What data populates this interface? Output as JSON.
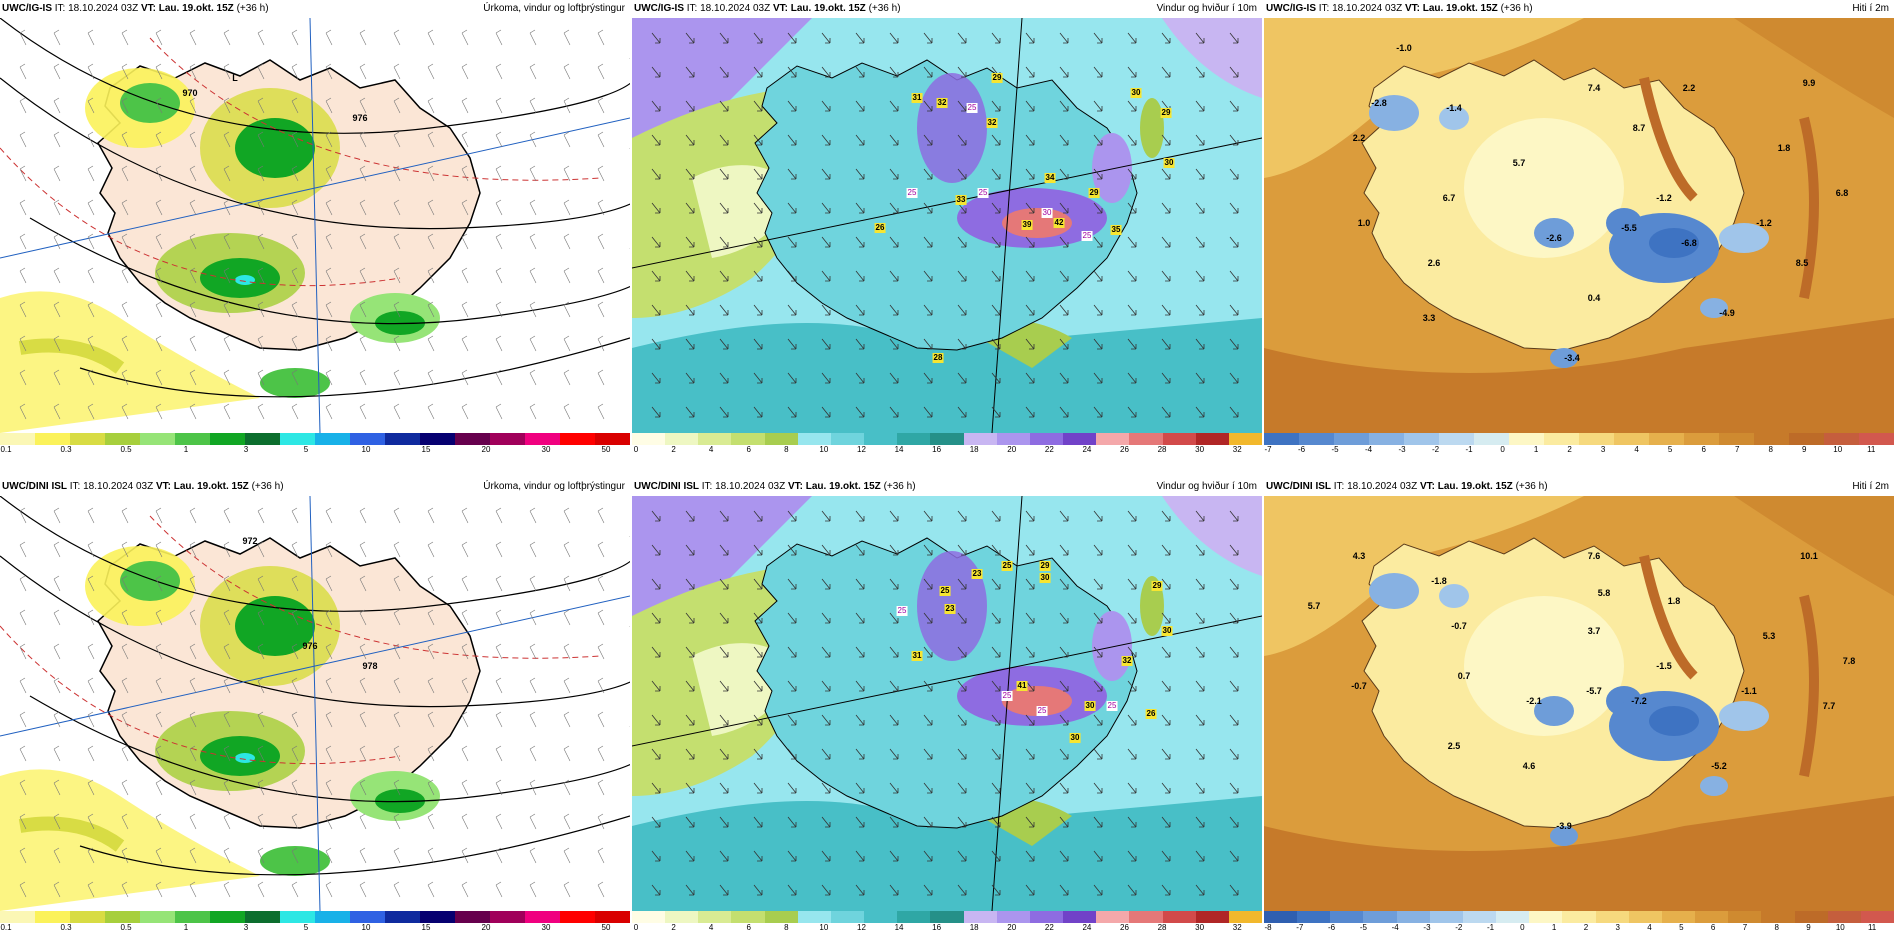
{
  "panels": [
    {
      "model": "UWC/IG-IS",
      "it": "IT: 18.10.2024 03Z",
      "vt_label": "VT: Lau. 19.okt. 15Z",
      "lead": "(+36 h)",
      "param": "Úrkoma, vindur og loftþrýstingur",
      "colors": [
        "#fbf7b5",
        "#fbf25a",
        "#d8dc44",
        "#a7cf3c",
        "#96e477",
        "#4dc448",
        "#11a624",
        "#0c6e2e",
        "#2de7e4",
        "#18b1e8",
        "#2f61e3",
        "#0f2a9e",
        "#060070",
        "#66004d",
        "#a0005a",
        "#f0007f",
        "#ff0000",
        "#d90000"
      ],
      "ticks": [
        "0.1",
        "0.3",
        "0.5",
        "1",
        "3",
        "5",
        "10",
        "15",
        "20",
        "30",
        "50"
      ],
      "labels": [
        {
          "t": "970"
        },
        {
          "t": "976"
        },
        {
          "t": "L"
        }
      ],
      "badges": []
    },
    {
      "model": "UWC/IG-IS",
      "it": "IT: 18.10.2024 03Z",
      "vt_label": "VT: Lau. 19.okt. 15Z",
      "lead": "(+36 h)",
      "param": "Vindur og hviður í 10m",
      "colors": [
        "#fffde5",
        "#eef7c2",
        "#d9eb93",
        "#c4df6f",
        "#a8cd4f",
        "#97e6ee",
        "#6fd4dd",
        "#48bfc7",
        "#2fa7a5",
        "#259088",
        "#c8b6f2",
        "#ab95ee",
        "#8e6ce1",
        "#7142c8",
        "#f4a8aa",
        "#e57878",
        "#d24a4a",
        "#b02626",
        "#f2b82c"
      ],
      "ticks": [
        "0",
        "2",
        "4",
        "6",
        "8",
        "10",
        "12",
        "14",
        "16",
        "18",
        "20",
        "22",
        "24",
        "26",
        "28",
        "30",
        "32"
      ],
      "labels": [],
      "badges": [
        {
          "t": "29"
        },
        {
          "t": "31"
        },
        {
          "t": "32"
        },
        {
          "t": "32"
        },
        {
          "t": "30"
        },
        {
          "t": "29"
        },
        {
          "t": "30"
        },
        {
          "t": "34"
        },
        {
          "t": "29"
        },
        {
          "t": "33"
        },
        {
          "t": "26"
        },
        {
          "t": "39"
        },
        {
          "t": "42"
        },
        {
          "t": "35"
        },
        {
          "t": "28"
        }
      ],
      "wbadges": [
        {
          "t": "25"
        },
        {
          "t": "25"
        },
        {
          "t": "25"
        },
        {
          "t": "30"
        },
        {
          "t": "25"
        }
      ]
    },
    {
      "model": "UWC/IG-IS",
      "it": "IT: 18.10.2024 03Z",
      "vt_label": "VT: Lau. 19.okt. 15Z",
      "lead": "(+36 h)",
      "param": "Hiti í 2m",
      "colors": [
        "#3e73c2",
        "#5688cf",
        "#6e9dd9",
        "#87b1e2",
        "#a0c5ea",
        "#bcd9f0",
        "#d6ecf1",
        "#fdf7c5",
        "#fbeba0",
        "#f6d97e",
        "#efc562",
        "#e6b04c",
        "#db9c3c",
        "#cf8a30",
        "#c67a2a",
        "#bd6b28",
        "#c55e3d",
        "#d2584e"
      ],
      "ticks": [
        "-7",
        "-6",
        "-5",
        "-4",
        "-3",
        "-2",
        "-1",
        "0",
        "1",
        "2",
        "3",
        "4",
        "5",
        "6",
        "7",
        "8",
        "9",
        "10",
        "11"
      ],
      "labels": [
        {
          "t": "-1.0"
        },
        {
          "t": "-2.8"
        },
        {
          "t": "-1.4"
        },
        {
          "t": "2.2"
        },
        {
          "t": "7.4"
        },
        {
          "t": "2.2"
        },
        {
          "t": "9.9"
        },
        {
          "t": "8.7"
        },
        {
          "t": "5.7"
        },
        {
          "t": "1.8"
        },
        {
          "t": "6.7"
        },
        {
          "t": "-1.2"
        },
        {
          "t": "6.8"
        },
        {
          "t": "1.0"
        },
        {
          "t": "-2.6"
        },
        {
          "t": "-5.5"
        },
        {
          "t": "-6.8"
        },
        {
          "t": "-1.2"
        },
        {
          "t": "2.6"
        },
        {
          "t": "8.5"
        },
        {
          "t": "0.4"
        },
        {
          "t": "3.3"
        },
        {
          "t": "-4.9"
        },
        {
          "t": "-3.4"
        }
      ]
    },
    {
      "model": "UWC/DINI ISL",
      "it": "IT: 18.10.2024 03Z",
      "vt_label": "VT: Lau. 19.okt. 15Z",
      "lead": "(+36 h)",
      "param": "Úrkoma, vindur og loftþrýstingur",
      "colors": [
        "#fbf7b5",
        "#fbf25a",
        "#d8dc44",
        "#a7cf3c",
        "#96e477",
        "#4dc448",
        "#11a624",
        "#0c6e2e",
        "#2de7e4",
        "#18b1e8",
        "#2f61e3",
        "#0f2a9e",
        "#060070",
        "#66004d",
        "#a0005a",
        "#f0007f",
        "#ff0000",
        "#d90000"
      ],
      "ticks": [
        "0.1",
        "0.3",
        "0.5",
        "1",
        "3",
        "5",
        "10",
        "15",
        "20",
        "30",
        "50"
      ],
      "labels": [
        {
          "t": "972"
        },
        {
          "t": "976"
        },
        {
          "t": "978"
        }
      ],
      "badges": []
    },
    {
      "model": "UWC/DINI ISL",
      "it": "IT: 18.10.2024 03Z",
      "vt_label": "VT: Lau. 19.okt. 15Z",
      "lead": "(+36 h)",
      "param": "Vindur og hviður í 10m",
      "colors": [
        "#fffde5",
        "#eef7c2",
        "#d9eb93",
        "#c4df6f",
        "#a8cd4f",
        "#97e6ee",
        "#6fd4dd",
        "#48bfc7",
        "#2fa7a5",
        "#259088",
        "#c8b6f2",
        "#ab95ee",
        "#8e6ce1",
        "#7142c8",
        "#f4a8aa",
        "#e57878",
        "#d24a4a",
        "#b02626",
        "#f2b82c"
      ],
      "ticks": [
        "0",
        "2",
        "4",
        "6",
        "8",
        "10",
        "12",
        "14",
        "16",
        "18",
        "20",
        "22",
        "24",
        "26",
        "28",
        "30",
        "32"
      ],
      "labels": [],
      "badges": [
        {
          "t": "25"
        },
        {
          "t": "23"
        },
        {
          "t": "29"
        },
        {
          "t": "25"
        },
        {
          "t": "23"
        },
        {
          "t": "30"
        },
        {
          "t": "29"
        },
        {
          "t": "30"
        },
        {
          "t": "31"
        },
        {
          "t": "41"
        },
        {
          "t": "32"
        },
        {
          "t": "30"
        },
        {
          "t": "26"
        },
        {
          "t": "30"
        }
      ],
      "wbadges": [
        {
          "t": "25"
        },
        {
          "t": "25"
        },
        {
          "t": "25"
        },
        {
          "t": "25"
        }
      ]
    },
    {
      "model": "UWC/DINI ISL",
      "it": "IT: 18.10.2024 03Z",
      "vt_label": "VT: Lau. 19.okt. 15Z",
      "lead": "(+36 h)",
      "param": "Hiti í 2m",
      "colors": [
        "#2f5fb0",
        "#3e73c2",
        "#5688cf",
        "#6e9dd9",
        "#87b1e2",
        "#a0c5ea",
        "#bcd9f0",
        "#d6ecf1",
        "#fdf7c5",
        "#fbeba0",
        "#f6d97e",
        "#efc562",
        "#e6b04c",
        "#db9c3c",
        "#cf8a30",
        "#c67a2a",
        "#bd6b28",
        "#c55e3d",
        "#d2584e"
      ],
      "ticks": [
        "-8",
        "-7",
        "-6",
        "-5",
        "-4",
        "-3",
        "-2",
        "-1",
        "0",
        "1",
        "2",
        "3",
        "4",
        "5",
        "6",
        "7",
        "8",
        "9",
        "10",
        "11"
      ],
      "labels": [
        {
          "t": "4.3"
        },
        {
          "t": "-1.8"
        },
        {
          "t": "7.6"
        },
        {
          "t": "10.1"
        },
        {
          "t": "5.7"
        },
        {
          "t": "5.8"
        },
        {
          "t": "1.8"
        },
        {
          "t": "-0.7"
        },
        {
          "t": "3.7"
        },
        {
          "t": "5.3"
        },
        {
          "t": "0.7"
        },
        {
          "t": "-1.5"
        },
        {
          "t": "7.8"
        },
        {
          "t": "-0.7"
        },
        {
          "t": "-2.1"
        },
        {
          "t": "-5.7"
        },
        {
          "t": "-7.2"
        },
        {
          "t": "-1.1"
        },
        {
          "t": "7.7"
        },
        {
          "t": "2.5"
        },
        {
          "t": "4.6"
        },
        {
          "t": "-5.2"
        },
        {
          "t": "-3.9"
        }
      ]
    }
  ]
}
